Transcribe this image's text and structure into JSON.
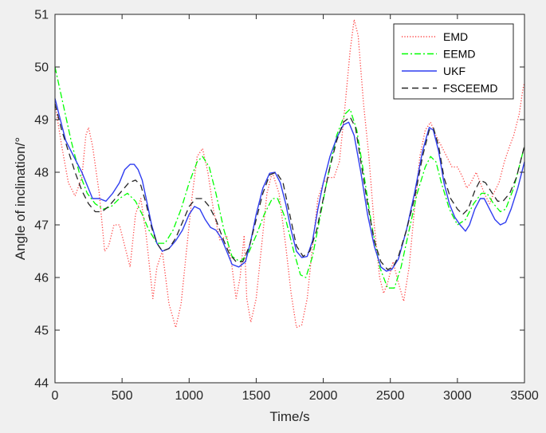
{
  "chart_data": {
    "type": "line",
    "title": "",
    "xlabel": "Time/s",
    "ylabel": "Angle of inclination/°",
    "xlim": [
      0,
      3500
    ],
    "ylim": [
      44,
      51
    ],
    "xticks": [
      0,
      500,
      1000,
      1500,
      2000,
      2500,
      3000,
      3500
    ],
    "yticks": [
      44,
      45,
      46,
      47,
      48,
      49,
      50,
      51
    ],
    "grid": false,
    "legend_position": "top-right",
    "series": [
      {
        "name": "EMD",
        "color": "#ff4040",
        "style": "dotted",
        "points": [
          [
            0,
            49.3
          ],
          [
            50,
            48.5
          ],
          [
            100,
            47.8
          ],
          [
            150,
            47.55
          ],
          [
            200,
            47.9
          ],
          [
            230,
            48.7
          ],
          [
            250,
            48.85
          ],
          [
            280,
            48.5
          ],
          [
            330,
            47.6
          ],
          [
            370,
            46.5
          ],
          [
            400,
            46.6
          ],
          [
            440,
            47.0
          ],
          [
            480,
            47.0
          ],
          [
            520,
            46.6
          ],
          [
            560,
            46.2
          ],
          [
            600,
            47.2
          ],
          [
            640,
            47.5
          ],
          [
            680,
            46.8
          ],
          [
            730,
            45.6
          ],
          [
            760,
            46.2
          ],
          [
            800,
            46.5
          ],
          [
            850,
            45.5
          ],
          [
            900,
            45.05
          ],
          [
            940,
            45.5
          ],
          [
            980,
            46.5
          ],
          [
            1020,
            47.5
          ],
          [
            1060,
            48.3
          ],
          [
            1100,
            48.45
          ],
          [
            1140,
            48.0
          ],
          [
            1180,
            47.3
          ],
          [
            1230,
            46.7
          ],
          [
            1280,
            46.8
          ],
          [
            1320,
            46.2
          ],
          [
            1350,
            45.6
          ],
          [
            1380,
            46.0
          ],
          [
            1410,
            46.8
          ],
          [
            1430,
            45.6
          ],
          [
            1460,
            45.15
          ],
          [
            1500,
            45.6
          ],
          [
            1540,
            46.6
          ],
          [
            1580,
            47.6
          ],
          [
            1620,
            48.0
          ],
          [
            1670,
            47.6
          ],
          [
            1720,
            46.6
          ],
          [
            1760,
            45.7
          ],
          [
            1800,
            45.05
          ],
          [
            1840,
            45.1
          ],
          [
            1880,
            45.6
          ],
          [
            1920,
            46.6
          ],
          [
            1960,
            47.5
          ],
          [
            2000,
            47.8
          ],
          [
            2040,
            47.9
          ],
          [
            2080,
            47.9
          ],
          [
            2120,
            48.2
          ],
          [
            2160,
            49.2
          ],
          [
            2200,
            50.3
          ],
          [
            2230,
            50.9
          ],
          [
            2260,
            50.6
          ],
          [
            2300,
            49.3
          ],
          [
            2340,
            48.3
          ],
          [
            2380,
            47.0
          ],
          [
            2420,
            46.0
          ],
          [
            2450,
            45.7
          ],
          [
            2480,
            45.9
          ],
          [
            2520,
            46.3
          ],
          [
            2560,
            45.9
          ],
          [
            2600,
            45.55
          ],
          [
            2640,
            46.2
          ],
          [
            2680,
            47.3
          ],
          [
            2720,
            48.3
          ],
          [
            2760,
            48.8
          ],
          [
            2800,
            48.95
          ],
          [
            2840,
            48.7
          ],
          [
            2880,
            48.5
          ],
          [
            2920,
            48.3
          ],
          [
            2960,
            48.1
          ],
          [
            3000,
            48.1
          ],
          [
            3040,
            47.9
          ],
          [
            3070,
            47.7
          ],
          [
            3100,
            47.8
          ],
          [
            3140,
            48.0
          ],
          [
            3170,
            47.8
          ],
          [
            3200,
            47.6
          ],
          [
            3240,
            47.4
          ],
          [
            3270,
            47.6
          ],
          [
            3310,
            47.8
          ],
          [
            3350,
            48.2
          ],
          [
            3390,
            48.5
          ],
          [
            3420,
            48.7
          ],
          [
            3460,
            49.1
          ],
          [
            3490,
            49.6
          ],
          [
            3500,
            49.7
          ]
        ]
      },
      {
        "name": "EEMD",
        "color": "#00ff00",
        "style": "dashdot",
        "points": [
          [
            0,
            50.0
          ],
          [
            60,
            49.3
          ],
          [
            120,
            48.6
          ],
          [
            180,
            48.0
          ],
          [
            240,
            47.6
          ],
          [
            300,
            47.4
          ],
          [
            360,
            47.3
          ],
          [
            420,
            47.35
          ],
          [
            480,
            47.5
          ],
          [
            540,
            47.6
          ],
          [
            600,
            47.45
          ],
          [
            650,
            47.2
          ],
          [
            700,
            46.9
          ],
          [
            760,
            46.65
          ],
          [
            820,
            46.65
          ],
          [
            880,
            46.9
          ],
          [
            940,
            47.3
          ],
          [
            1000,
            47.8
          ],
          [
            1060,
            48.2
          ],
          [
            1100,
            48.3
          ],
          [
            1150,
            48.1
          ],
          [
            1200,
            47.6
          ],
          [
            1260,
            46.9
          ],
          [
            1320,
            46.4
          ],
          [
            1380,
            46.3
          ],
          [
            1440,
            46.45
          ],
          [
            1500,
            46.8
          ],
          [
            1560,
            47.2
          ],
          [
            1620,
            47.5
          ],
          [
            1660,
            47.5
          ],
          [
            1720,
            47.1
          ],
          [
            1780,
            46.5
          ],
          [
            1830,
            46.05
          ],
          [
            1870,
            46.0
          ],
          [
            1920,
            46.4
          ],
          [
            1980,
            47.2
          ],
          [
            2040,
            48.0
          ],
          [
            2100,
            48.7
          ],
          [
            2160,
            49.1
          ],
          [
            2200,
            49.2
          ],
          [
            2250,
            48.8
          ],
          [
            2300,
            48.0
          ],
          [
            2360,
            47.0
          ],
          [
            2420,
            46.2
          ],
          [
            2480,
            45.8
          ],
          [
            2530,
            45.8
          ],
          [
            2580,
            46.2
          ],
          [
            2640,
            46.9
          ],
          [
            2700,
            47.6
          ],
          [
            2760,
            48.1
          ],
          [
            2800,
            48.3
          ],
          [
            2840,
            48.2
          ],
          [
            2880,
            47.8
          ],
          [
            2940,
            47.3
          ],
          [
            3000,
            47.0
          ],
          [
            3060,
            47.1
          ],
          [
            3120,
            47.4
          ],
          [
            3180,
            47.6
          ],
          [
            3220,
            47.6
          ],
          [
            3270,
            47.4
          ],
          [
            3320,
            47.25
          ],
          [
            3360,
            47.3
          ],
          [
            3420,
            47.7
          ],
          [
            3470,
            48.2
          ],
          [
            3500,
            48.5
          ]
        ]
      },
      {
        "name": "UKF",
        "color": "#2f3df0",
        "style": "solid",
        "points": [
          [
            0,
            49.4
          ],
          [
            40,
            49.0
          ],
          [
            80,
            48.6
          ],
          [
            120,
            48.4
          ],
          [
            160,
            48.2
          ],
          [
            200,
            48.0
          ],
          [
            240,
            47.75
          ],
          [
            280,
            47.5
          ],
          [
            330,
            47.5
          ],
          [
            380,
            47.45
          ],
          [
            430,
            47.6
          ],
          [
            480,
            47.8
          ],
          [
            520,
            48.05
          ],
          [
            560,
            48.15
          ],
          [
            590,
            48.15
          ],
          [
            620,
            48.05
          ],
          [
            650,
            47.85
          ],
          [
            680,
            47.5
          ],
          [
            720,
            47.0
          ],
          [
            760,
            46.65
          ],
          [
            800,
            46.5
          ],
          [
            850,
            46.55
          ],
          [
            900,
            46.7
          ],
          [
            950,
            46.9
          ],
          [
            1000,
            47.2
          ],
          [
            1040,
            47.35
          ],
          [
            1080,
            47.3
          ],
          [
            1120,
            47.1
          ],
          [
            1160,
            46.95
          ],
          [
            1200,
            46.9
          ],
          [
            1240,
            46.75
          ],
          [
            1280,
            46.5
          ],
          [
            1320,
            46.25
          ],
          [
            1370,
            46.2
          ],
          [
            1420,
            46.3
          ],
          [
            1460,
            46.7
          ],
          [
            1500,
            47.2
          ],
          [
            1550,
            47.7
          ],
          [
            1600,
            47.98
          ],
          [
            1640,
            48.0
          ],
          [
            1680,
            47.8
          ],
          [
            1720,
            47.4
          ],
          [
            1760,
            46.9
          ],
          [
            1800,
            46.5
          ],
          [
            1840,
            46.38
          ],
          [
            1880,
            46.4
          ],
          [
            1920,
            46.7
          ],
          [
            1960,
            47.3
          ],
          [
            2000,
            47.8
          ],
          [
            2050,
            48.3
          ],
          [
            2100,
            48.65
          ],
          [
            2150,
            48.9
          ],
          [
            2190,
            48.95
          ],
          [
            2230,
            48.7
          ],
          [
            2280,
            48.0
          ],
          [
            2330,
            47.2
          ],
          [
            2380,
            46.6
          ],
          [
            2430,
            46.2
          ],
          [
            2470,
            46.12
          ],
          [
            2510,
            46.15
          ],
          [
            2560,
            46.35
          ],
          [
            2620,
            46.9
          ],
          [
            2680,
            47.6
          ],
          [
            2740,
            48.4
          ],
          [
            2790,
            48.85
          ],
          [
            2820,
            48.8
          ],
          [
            2860,
            48.4
          ],
          [
            2900,
            47.8
          ],
          [
            2940,
            47.4
          ],
          [
            2980,
            47.15
          ],
          [
            3020,
            47.0
          ],
          [
            3060,
            46.88
          ],
          [
            3090,
            47.0
          ],
          [
            3130,
            47.3
          ],
          [
            3170,
            47.5
          ],
          [
            3200,
            47.5
          ],
          [
            3240,
            47.3
          ],
          [
            3280,
            47.1
          ],
          [
            3320,
            47.0
          ],
          [
            3360,
            47.05
          ],
          [
            3400,
            47.3
          ],
          [
            3450,
            47.7
          ],
          [
            3500,
            48.2
          ]
        ]
      },
      {
        "name": "FSCEEMD",
        "color": "#262626",
        "style": "dashed",
        "points": [
          [
            0,
            49.3
          ],
          [
            50,
            48.8
          ],
          [
            100,
            48.4
          ],
          [
            150,
            48.0
          ],
          [
            200,
            47.65
          ],
          [
            250,
            47.4
          ],
          [
            300,
            47.25
          ],
          [
            350,
            47.25
          ],
          [
            400,
            47.35
          ],
          [
            450,
            47.5
          ],
          [
            500,
            47.65
          ],
          [
            550,
            47.8
          ],
          [
            600,
            47.85
          ],
          [
            640,
            47.75
          ],
          [
            680,
            47.4
          ],
          [
            720,
            46.95
          ],
          [
            760,
            46.65
          ],
          [
            800,
            46.5
          ],
          [
            850,
            46.55
          ],
          [
            900,
            46.75
          ],
          [
            950,
            47.05
          ],
          [
            1000,
            47.35
          ],
          [
            1050,
            47.5
          ],
          [
            1100,
            47.5
          ],
          [
            1150,
            47.35
          ],
          [
            1200,
            47.1
          ],
          [
            1250,
            46.75
          ],
          [
            1300,
            46.45
          ],
          [
            1350,
            46.3
          ],
          [
            1400,
            46.3
          ],
          [
            1450,
            46.6
          ],
          [
            1500,
            47.1
          ],
          [
            1550,
            47.6
          ],
          [
            1600,
            47.95
          ],
          [
            1650,
            48.0
          ],
          [
            1700,
            47.8
          ],
          [
            1750,
            47.2
          ],
          [
            1800,
            46.6
          ],
          [
            1850,
            46.4
          ],
          [
            1900,
            46.5
          ],
          [
            1950,
            46.9
          ],
          [
            2000,
            47.5
          ],
          [
            2050,
            48.1
          ],
          [
            2100,
            48.6
          ],
          [
            2150,
            48.95
          ],
          [
            2200,
            49.05
          ],
          [
            2240,
            48.85
          ],
          [
            2280,
            48.2
          ],
          [
            2330,
            47.4
          ],
          [
            2380,
            46.7
          ],
          [
            2430,
            46.3
          ],
          [
            2480,
            46.15
          ],
          [
            2520,
            46.2
          ],
          [
            2560,
            46.4
          ],
          [
            2620,
            46.9
          ],
          [
            2680,
            47.5
          ],
          [
            2740,
            48.3
          ],
          [
            2790,
            48.8
          ],
          [
            2820,
            48.85
          ],
          [
            2860,
            48.5
          ],
          [
            2900,
            47.9
          ],
          [
            2950,
            47.5
          ],
          [
            3000,
            47.3
          ],
          [
            3040,
            47.2
          ],
          [
            3080,
            47.3
          ],
          [
            3130,
            47.65
          ],
          [
            3170,
            47.85
          ],
          [
            3210,
            47.8
          ],
          [
            3260,
            47.6
          ],
          [
            3300,
            47.45
          ],
          [
            3340,
            47.45
          ],
          [
            3390,
            47.6
          ],
          [
            3440,
            47.9
          ],
          [
            3480,
            48.3
          ],
          [
            3500,
            48.5
          ]
        ]
      }
    ]
  }
}
